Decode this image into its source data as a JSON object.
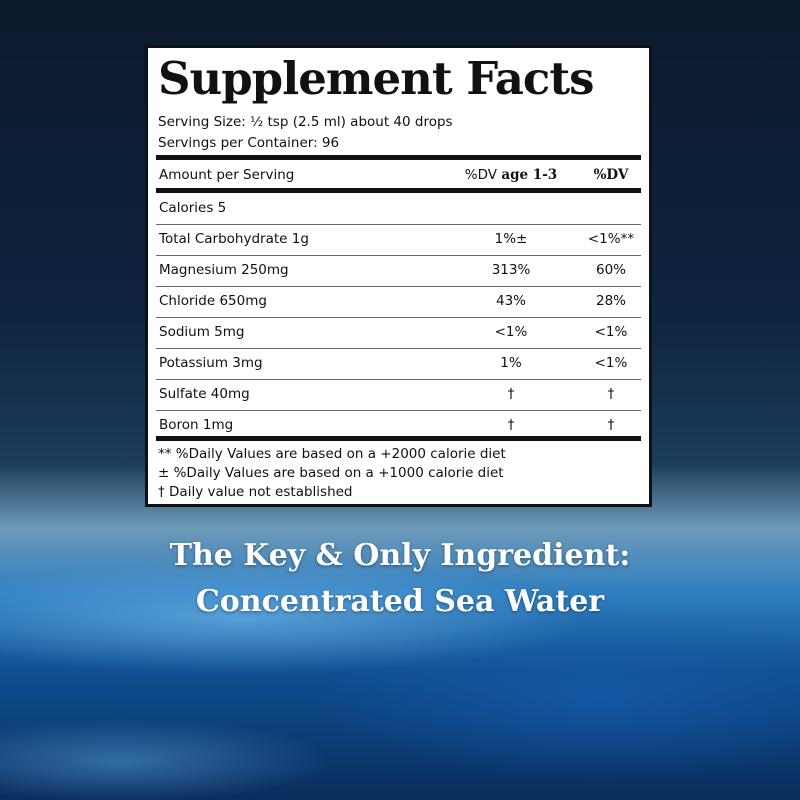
{
  "label": {
    "title": "Supplement Facts",
    "serving_size": "Serving Size: ½ tsp (2.5 ml) about 40 drops",
    "servings_per_container": "Servings per Container: 96",
    "header": {
      "amount": "Amount per Serving",
      "dv_child_prefix": "%DV",
      "dv_child_bold": "age 1-3",
      "dv": "%DV"
    },
    "rows": [
      {
        "name": "Calories  5",
        "dv_child": "",
        "dv": ""
      },
      {
        "name": "Total Carbohydrate 1g",
        "dv_child": "1%±",
        "dv": "<1%**"
      },
      {
        "name": "Magnesium 250mg",
        "dv_child": "313%",
        "dv": "60%"
      },
      {
        "name": "Chloride 650mg",
        "dv_child": "43%",
        "dv": "28%"
      },
      {
        "name": "Sodium 5mg",
        "dv_child": "<1%",
        "dv": "<1%"
      },
      {
        "name": "Potassium 3mg",
        "dv_child": "1%",
        "dv": "<1%"
      },
      {
        "name": "Sulfate 40mg",
        "dv_child": "†",
        "dv": "†"
      },
      {
        "name": "Boron 1mg",
        "dv_child": "†",
        "dv": "†"
      }
    ],
    "footnotes": [
      "** %Daily Values are based on a +2000 calorie diet",
      "±   %Daily Values are based on a +1000 calorie diet",
      "†  Daily value not established"
    ]
  },
  "headline": {
    "line1": "The Key & Only Ingredient:",
    "line2": "Concentrated Sea Water"
  }
}
